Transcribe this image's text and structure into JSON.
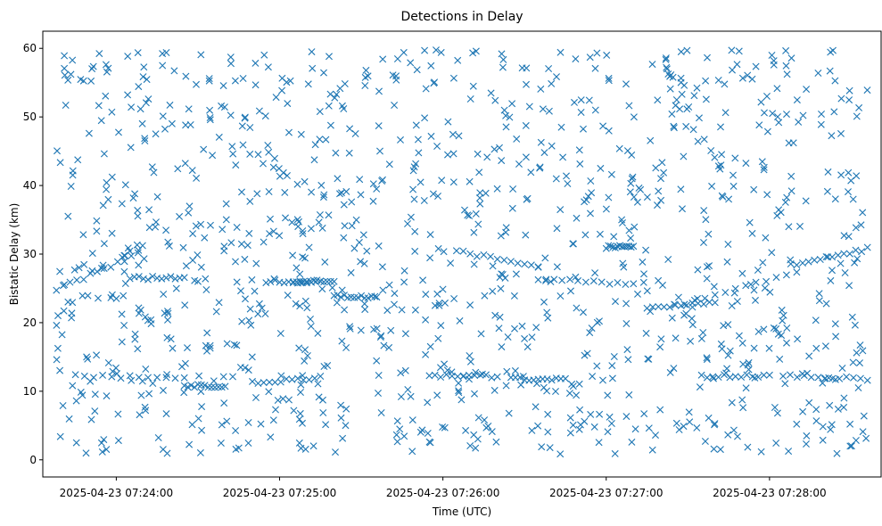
{
  "chart_data": {
    "type": "scatter",
    "title": "Detections in Delay",
    "xlabel": "Time (UTC)",
    "ylabel": "Bistatic Delay (km)",
    "marker": "x",
    "marker_color": "#1f77b4",
    "x_start": "2025-04-23 07:23:38",
    "x_end": "2025-04-23 07:28:36",
    "xlim": [
      "2025-04-23 07:23:33",
      "2025-04-23 07:28:41"
    ],
    "ylim": [
      -2.5,
      62.5
    ],
    "x_ticks": [
      "2025-04-23 07:24:00",
      "2025-04-23 07:25:00",
      "2025-04-23 07:26:00",
      "2025-04-23 07:27:00",
      "2025-04-23 07:28:00"
    ],
    "y_ticks": [
      0,
      10,
      20,
      30,
      40,
      50,
      60
    ],
    "grid": false,
    "legend": "none",
    "tracks": [
      {
        "x_start": "2025-04-23 07:23:38",
        "x_end": "2025-04-23 07:24:08",
        "y_start": 24.8,
        "y_end": 30.0
      },
      {
        "x_start": "2025-04-23 07:24:05",
        "x_end": "2025-04-23 07:24:25",
        "y_start": 26.5,
        "y_end": 26.5
      },
      {
        "x_start": "2025-04-23 07:24:55",
        "x_end": "2025-04-23 07:25:15",
        "y_start": 26.0,
        "y_end": 26.0
      },
      {
        "x_start": "2025-04-23 07:25:05",
        "x_end": "2025-04-23 07:25:20",
        "y_start": 26.0,
        "y_end": 26.0
      },
      {
        "x_start": "2025-04-23 07:25:20",
        "x_end": "2025-04-23 07:25:35",
        "y_start": 23.8,
        "y_end": 23.8
      },
      {
        "x_start": "2025-04-23 07:26:05",
        "x_end": "2025-04-23 07:26:35",
        "y_start": 30.5,
        "y_end": 28.0
      },
      {
        "x_start": "2025-04-23 07:26:35",
        "x_end": "2025-04-23 07:27:10",
        "y_start": 26.5,
        "y_end": 25.5
      },
      {
        "x_start": "2025-04-23 07:27:00",
        "x_end": "2025-04-23 07:27:10",
        "y_start": 31.0,
        "y_end": 31.0
      },
      {
        "x_start": "2025-04-23 07:27:15",
        "x_end": "2025-04-23 07:27:40",
        "y_start": 22.0,
        "y_end": 23.0
      },
      {
        "x_start": "2025-04-23 07:27:25",
        "x_end": "2025-04-23 07:28:10",
        "y_start": 22.5,
        "y_end": 27.5
      },
      {
        "x_start": "2025-04-23 07:28:10",
        "x_end": "2025-04-23 07:28:36",
        "y_start": 28.5,
        "y_end": 30.8
      },
      {
        "x_start": "2025-04-23 07:23:45",
        "x_end": "2025-04-23 07:24:25",
        "y_start": 12.2,
        "y_end": 12.0
      },
      {
        "x_start": "2025-04-23 07:24:25",
        "x_end": "2025-04-23 07:24:40",
        "y_start": 10.8,
        "y_end": 10.8
      },
      {
        "x_start": "2025-04-23 07:24:50",
        "x_end": "2025-04-23 07:25:15",
        "y_start": 11.2,
        "y_end": 12.0
      },
      {
        "x_start": "2025-04-23 07:25:55",
        "x_end": "2025-04-23 07:26:20",
        "y_start": 12.2,
        "y_end": 12.2
      },
      {
        "x_start": "2025-04-23 07:26:25",
        "x_end": "2025-04-23 07:26:45",
        "y_start": 11.8,
        "y_end": 11.8
      },
      {
        "x_start": "2025-04-23 07:27:35",
        "x_end": "2025-04-23 07:28:00",
        "y_start": 12.2,
        "y_end": 12.2
      },
      {
        "x_start": "2025-04-23 07:28:05",
        "x_end": "2025-04-23 07:28:36",
        "y_start": 12.2,
        "y_end": 11.8
      }
    ],
    "track_point_count": 240,
    "scatter_point_count": 1150
  }
}
